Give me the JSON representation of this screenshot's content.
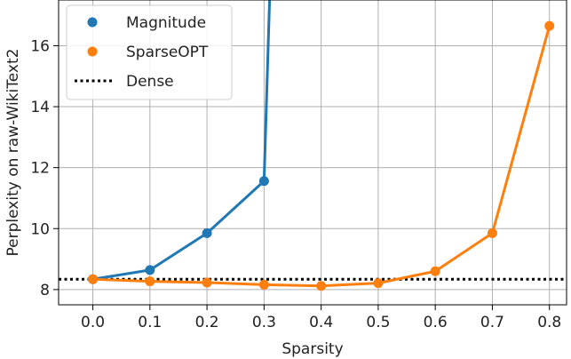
{
  "chart_data": {
    "type": "line",
    "xlabel": "Sparsity",
    "ylabel": "Perplexity on raw-WikiText2",
    "xlim": [
      -0.06,
      0.83
    ],
    "ylim": [
      7.5,
      17.5
    ],
    "x_ticks": [
      "0.0",
      "0.1",
      "0.2",
      "0.3",
      "0.4",
      "0.5",
      "0.6",
      "0.7",
      "0.8"
    ],
    "x_tick_values": [
      0.0,
      0.1,
      0.2,
      0.3,
      0.4,
      0.5,
      0.6,
      0.7,
      0.8
    ],
    "y_ticks": [
      "8",
      "10",
      "12",
      "14",
      "16"
    ],
    "y_tick_values": [
      8,
      10,
      12,
      14,
      16
    ],
    "grid": true,
    "legend_position": "top-left",
    "series": [
      {
        "name": "Magnitude",
        "color": "#1f77b4",
        "x": [
          0.0,
          0.1,
          0.2,
          0.3
        ],
        "y": [
          8.34,
          8.64,
          9.85,
          11.56
        ],
        "continues_beyond_top_to": [
          0.33,
          30.0
        ]
      },
      {
        "name": "SparseOPT",
        "color": "#ff7f0e",
        "x": [
          0.0,
          0.1,
          0.2,
          0.3,
          0.4,
          0.5,
          0.6,
          0.7,
          0.8
        ],
        "y": [
          8.34,
          8.27,
          8.23,
          8.16,
          8.12,
          8.21,
          8.6,
          9.85,
          16.65
        ]
      }
    ],
    "reference_lines": [
      {
        "name": "Dense",
        "y": 8.34,
        "style": "dotted",
        "color": "#000000"
      }
    ]
  }
}
